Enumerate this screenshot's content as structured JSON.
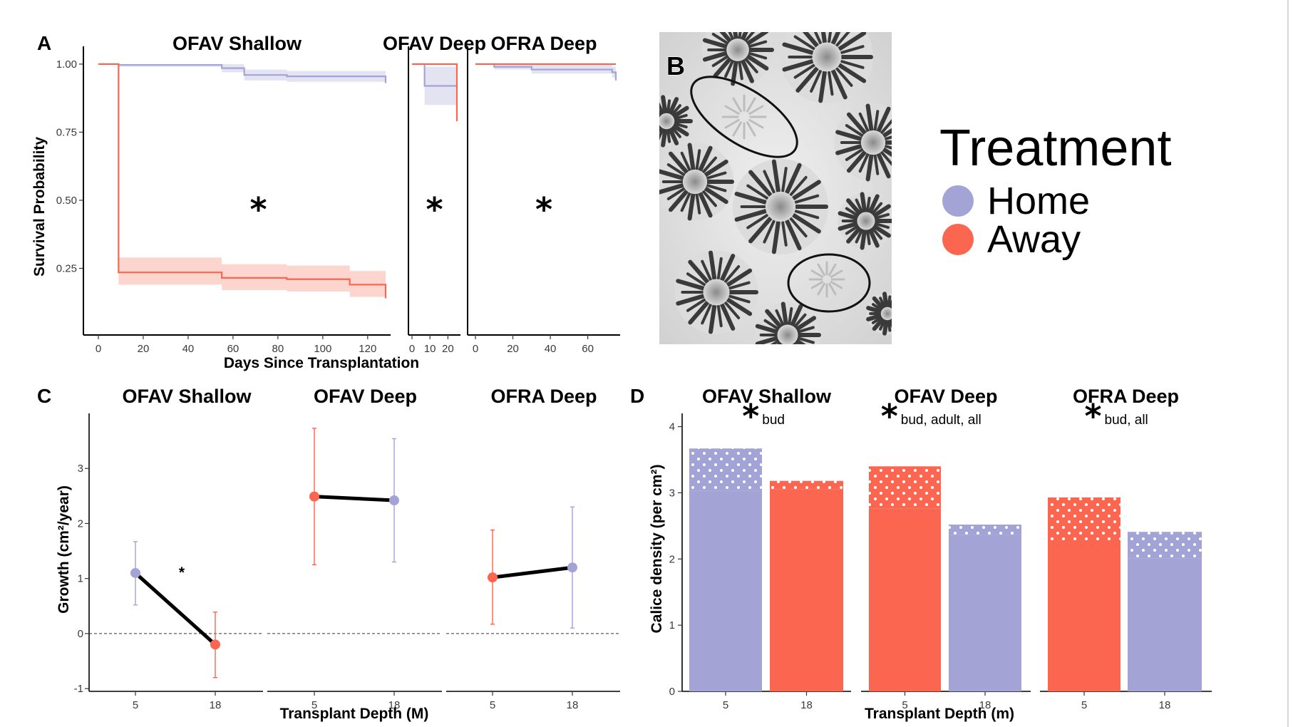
{
  "colors": {
    "home": "#a3a3d6",
    "away": "#fa6650",
    "home_band": "#dedef0",
    "away_band": "#fccfc6"
  },
  "panels": {
    "a": {
      "label": "A",
      "ylabel": "Survival Probability",
      "xlabel": "Days Since Transplantation"
    },
    "b": {
      "label": "B"
    },
    "c": {
      "label": "C",
      "ylabel": "Growth (cm²/year)",
      "xlabel": "Transplant Depth (M)",
      "star": "*"
    },
    "d": {
      "label": "D",
      "ylabel": "Calice density (per cm²)",
      "xlabel": "Transplant Depth (m)"
    }
  },
  "legend": {
    "title": "Treatment",
    "items": [
      {
        "label": "Home",
        "color": "#a3a3d6"
      },
      {
        "label": "Away",
        "color": "#fa6650"
      }
    ]
  },
  "chart_data": [
    {
      "type": "line",
      "panel": "A",
      "subtype": "kaplan-meier survival with confidence bands",
      "ylabel": "Survival Probability",
      "xlabel": "Days Since Transplantation",
      "ylim": [
        0,
        1
      ],
      "yticks": [
        "0.25",
        "0.50",
        "0.75",
        "1.00"
      ],
      "facets": [
        {
          "title": "OFAV Shallow",
          "xlim": [
            0,
            128
          ],
          "xticks": [
            "0",
            "20",
            "40",
            "60",
            "80",
            "100",
            "120"
          ],
          "annotation": "*",
          "series": [
            {
              "name": "Home",
              "x": [
                0,
                9,
                55,
                65,
                84,
                128
              ],
              "y": [
                1.0,
                0.997,
                0.985,
                0.96,
                0.955,
                0.93
              ],
              "lower": [
                1.0,
                0.99,
                0.97,
                0.94,
                0.935,
                0.92
              ],
              "upper": [
                1.0,
                1.0,
                1.0,
                0.98,
                0.975,
                0.97
              ]
            },
            {
              "name": "Away",
              "x": [
                0,
                9,
                55,
                84,
                112,
                128
              ],
              "y": [
                1.0,
                0.235,
                0.215,
                0.21,
                0.19,
                0.14
              ],
              "lower": [
                1.0,
                0.19,
                0.17,
                0.165,
                0.145,
                0.14
              ],
              "upper": [
                1.0,
                0.29,
                0.265,
                0.26,
                0.24,
                0.24
              ]
            }
          ]
        },
        {
          "title": "OFAV Deep",
          "xlim": [
            0,
            25
          ],
          "xticks": [
            "0",
            "10",
            "20"
          ],
          "annotation": "*",
          "series": [
            {
              "name": "Home",
              "x": [
                0,
                7,
                25
              ],
              "y": [
                1.0,
                0.92,
                0.91
              ],
              "lower": [
                1.0,
                0.85,
                0.85
              ],
              "upper": [
                1.0,
                0.99,
                0.99
              ]
            },
            {
              "name": "Away",
              "x": [
                0,
                24,
                25
              ],
              "y": [
                1.0,
                1.0,
                0.79
              ],
              "lower": [
                1.0,
                1.0,
                0.79
              ],
              "upper": [
                1.0,
                1.0,
                1.0
              ]
            }
          ]
        },
        {
          "title": "OFRA Deep",
          "xlim": [
            0,
            75
          ],
          "xticks": [
            "0",
            "20",
            "40",
            "60"
          ],
          "annotation": "*",
          "series": [
            {
              "name": "Home",
              "x": [
                0,
                10,
                30,
                73,
                75
              ],
              "y": [
                1.0,
                0.99,
                0.98,
                0.97,
                0.94
              ],
              "lower": [
                1.0,
                0.98,
                0.965,
                0.95,
                0.94
              ],
              "upper": [
                1.0,
                1.0,
                1.0,
                0.99,
                0.99
              ]
            },
            {
              "name": "Away",
              "x": [
                0,
                75
              ],
              "y": [
                1.0,
                1.0
              ],
              "lower": [
                1.0,
                1.0
              ],
              "upper": [
                1.0,
                1.0
              ]
            }
          ]
        }
      ]
    },
    {
      "type": "line",
      "panel": "C",
      "subtype": "means with error bars",
      "ylabel": "Growth (cm²/year)",
      "xlabel": "Transplant Depth (M)",
      "ylim": [
        -1,
        4
      ],
      "yticks": [
        "-1",
        "0",
        "1",
        "2",
        "3"
      ],
      "facets": [
        {
          "title": "OFAV Shallow",
          "categories": [
            "5",
            "18"
          ],
          "points": [
            {
              "depth": "5",
              "treatment": "Home",
              "value": 1.1,
              "lower": 0.52,
              "upper": 1.67
            },
            {
              "depth": "18",
              "treatment": "Away",
              "value": -0.2,
              "lower": -0.8,
              "upper": 0.39
            }
          ]
        },
        {
          "title": "OFAV Deep",
          "categories": [
            "5",
            "18"
          ],
          "points": [
            {
              "depth": "5",
              "treatment": "Away",
              "value": 2.49,
              "lower": 1.25,
              "upper": 3.73
            },
            {
              "depth": "18",
              "treatment": "Home",
              "value": 2.42,
              "lower": 1.3,
              "upper": 3.54
            }
          ]
        },
        {
          "title": "OFRA Deep",
          "categories": [
            "5",
            "18"
          ],
          "points": [
            {
              "depth": "5",
              "treatment": "Away",
              "value": 1.02,
              "lower": 0.17,
              "upper": 1.88
            },
            {
              "depth": "18",
              "treatment": "Home",
              "value": 1.2,
              "lower": 0.1,
              "upper": 2.3
            }
          ]
        }
      ]
    },
    {
      "type": "bar",
      "panel": "D",
      "subtype": "stacked (solid = adult, dotted = bud)",
      "ylabel": "Calice density (per cm²)",
      "xlabel": "Transplant Depth (m)",
      "ylim": [
        0,
        4.2
      ],
      "yticks": [
        "0",
        "1",
        "2",
        "3",
        "4"
      ],
      "facets": [
        {
          "title": "OFAV Shallow",
          "note": "bud",
          "categories": [
            "5",
            "18"
          ],
          "bars": [
            {
              "depth": "5",
              "treatment": "Home",
              "adult": 3.03,
              "total": 3.67
            },
            {
              "depth": "18",
              "treatment": "Away",
              "adult": 3.05,
              "total": 3.18
            }
          ]
        },
        {
          "title": "OFAV Deep",
          "note": "bud, adult, all",
          "categories": [
            "5",
            "18"
          ],
          "bars": [
            {
              "depth": "5",
              "treatment": "Away",
              "adult": 2.76,
              "total": 3.4
            },
            {
              "depth": "18",
              "treatment": "Home",
              "adult": 2.36,
              "total": 2.52
            }
          ]
        },
        {
          "title": "OFRA Deep",
          "note": "bud, all",
          "categories": [
            "5",
            "18"
          ],
          "bars": [
            {
              "depth": "5",
              "treatment": "Away",
              "adult": 2.24,
              "total": 2.93
            },
            {
              "depth": "18",
              "treatment": "Home",
              "adult": 2.01,
              "total": 2.41
            }
          ]
        }
      ]
    }
  ]
}
